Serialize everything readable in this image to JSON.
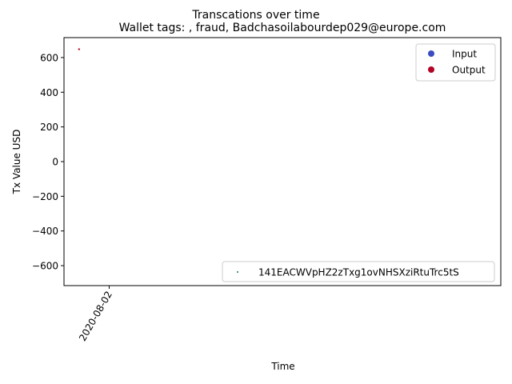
{
  "chart_data": {
    "type": "scatter",
    "suptitle": "Transcations over time",
    "title": "Wallet tags: , fraud, Badchasoilabourdep029@europe.com",
    "xlabel": "Time",
    "ylabel": "Tx Value USD",
    "ylim": [
      -715,
      715
    ],
    "yticks": [
      600,
      400,
      200,
      0,
      -200,
      -400,
      -600
    ],
    "ytick_labels": [
      "600",
      "400",
      "200",
      "0",
      "−200",
      "−400",
      "−600"
    ],
    "xtick_labels": [
      "2020-08-02"
    ],
    "x_axis_type": "date",
    "series": [
      {
        "name": "Output",
        "color": "#b40426",
        "points": [
          {
            "x": "2020-07-31",
            "y": 648
          }
        ]
      }
    ],
    "legend_top": {
      "placement": "top-right",
      "entries": [
        {
          "label": "Input",
          "color": "#3b4cc0"
        },
        {
          "label": "Output",
          "color": "#b40426"
        }
      ]
    },
    "legend_bottom": {
      "placement": "bottom-right",
      "entries": [
        {
          "label": "141EACWVpHZ2zTxg1ovNHSXziRtuTrc5tS",
          "color": "#1f7a6a"
        }
      ]
    }
  }
}
